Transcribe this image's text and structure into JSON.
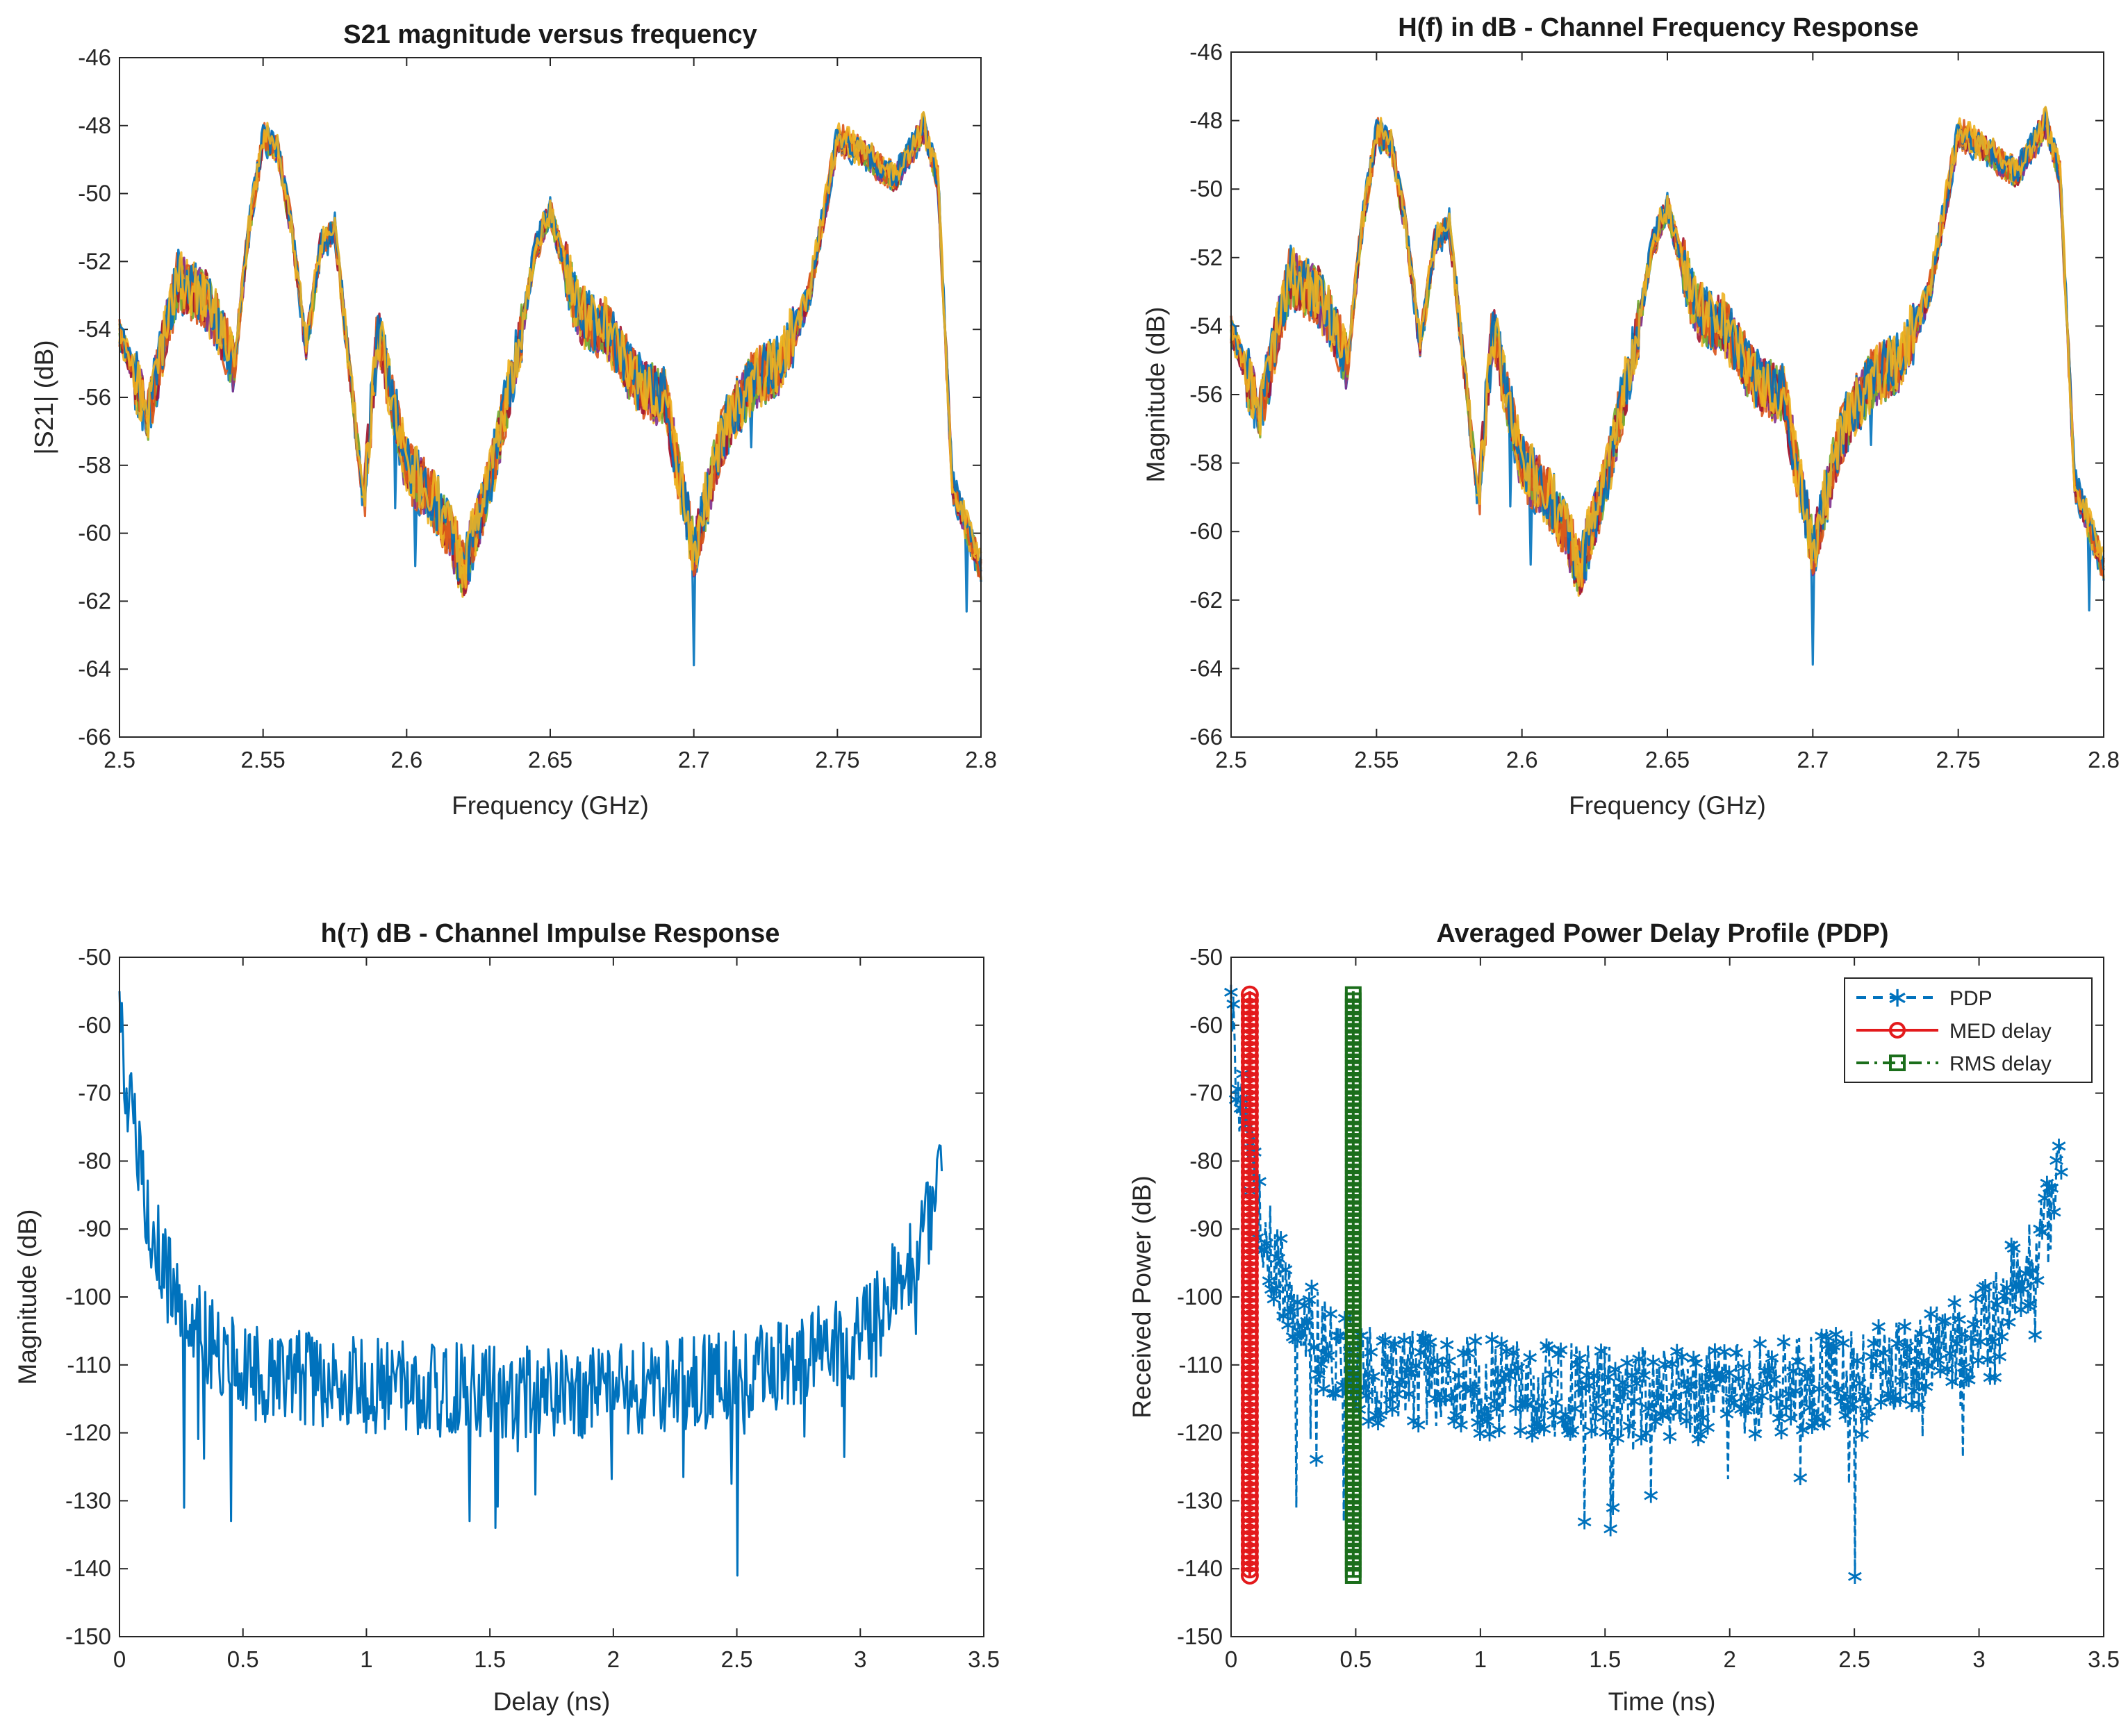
{
  "figure": "2x2 grid of channel measurement plots",
  "chart_data": [
    {
      "id": "s21",
      "type": "line",
      "title": "S21 magnitude versus frequency",
      "xlabel": "Frequency (GHz)",
      "ylabel": "|S21| (dB)",
      "xlim": [
        2.5,
        2.8
      ],
      "ylim": [
        -66,
        -46
      ],
      "xticks": [
        2.5,
        2.55,
        2.6,
        2.65,
        2.7,
        2.75,
        2.8
      ],
      "xtick_labels": [
        "2.5",
        "2.55",
        "2.6",
        "2.65",
        "2.7",
        "2.75",
        "2.8"
      ],
      "yticks": [
        -46,
        -48,
        -50,
        -52,
        -54,
        -56,
        -58,
        -60,
        -62,
        -64,
        -66
      ],
      "ytick_labels": [
        "-46",
        "-48",
        "-50",
        "-52",
        "-54",
        "-56",
        "-58",
        "-60",
        "-62",
        "-64",
        "-66"
      ],
      "x": [
        2.5,
        2.51,
        2.52,
        2.53,
        2.54,
        2.545,
        2.55,
        2.555,
        2.56,
        2.565,
        2.57,
        2.575,
        2.58,
        2.585,
        2.59,
        2.6,
        2.61,
        2.62,
        2.63,
        2.64,
        2.645,
        2.65,
        2.66,
        2.67,
        2.68,
        2.69,
        2.7,
        2.71,
        2.72,
        2.73,
        2.74,
        2.75,
        2.76,
        2.77,
        2.78,
        2.785,
        2.79,
        2.8
      ],
      "base": [
        -54,
        -56.5,
        -52.5,
        -53,
        -55,
        -51,
        -48.3,
        -48.6,
        -51,
        -54.5,
        -51.5,
        -51,
        -55,
        -59,
        -54,
        -58,
        -59,
        -61,
        -58,
        -54,
        -51.5,
        -50.5,
        -53.5,
        -54,
        -55.5,
        -56,
        -60.5,
        -57,
        -55.5,
        -55,
        -53,
        -48.3,
        -48.8,
        -49.5,
        -48,
        -49.5,
        -58.5,
        -61
      ],
      "series_colors": [
        "#0072BD",
        "#D95319",
        "#EDB120",
        "#7E2F8E",
        "#77AC30",
        "#A2142F",
        "#EDB120",
        "#D95319",
        "#0072BD",
        "#EDB120"
      ]
    },
    {
      "id": "hf",
      "type": "line",
      "title": "H(f) in dB - Channel Frequency Response",
      "xlabel": "Frequency (GHz)",
      "ylabel": "Magnitude (dB)",
      "xlim": [
        2.5,
        2.8
      ],
      "ylim": [
        -66,
        -46
      ],
      "xticks": [
        2.5,
        2.55,
        2.6,
        2.65,
        2.7,
        2.75,
        2.8
      ],
      "xtick_labels": [
        "2.5",
        "2.55",
        "2.6",
        "2.65",
        "2.7",
        "2.75",
        "2.8"
      ],
      "yticks": [
        -46,
        -48,
        -50,
        -52,
        -54,
        -56,
        -58,
        -60,
        -62,
        -64,
        -66
      ],
      "ytick_labels": [
        "-46",
        "-48",
        "-50",
        "-52",
        "-54",
        "-56",
        "-58",
        "-60",
        "-62",
        "-64",
        "-66"
      ],
      "x": [
        2.5,
        2.51,
        2.52,
        2.53,
        2.54,
        2.545,
        2.55,
        2.555,
        2.56,
        2.565,
        2.57,
        2.575,
        2.58,
        2.585,
        2.59,
        2.6,
        2.61,
        2.62,
        2.63,
        2.64,
        2.645,
        2.65,
        2.66,
        2.67,
        2.68,
        2.69,
        2.7,
        2.71,
        2.72,
        2.73,
        2.74,
        2.75,
        2.76,
        2.77,
        2.78,
        2.785,
        2.79,
        2.8
      ],
      "base": [
        -54,
        -56.5,
        -52.5,
        -53,
        -55,
        -51,
        -48.3,
        -48.6,
        -51,
        -54.5,
        -51.5,
        -51,
        -55,
        -59,
        -54,
        -58,
        -59,
        -61,
        -58,
        -54,
        -51.5,
        -50.5,
        -53.5,
        -54,
        -55.5,
        -56,
        -60.5,
        -57,
        -55.5,
        -55,
        -53,
        -48.3,
        -48.8,
        -49.5,
        -48,
        -49.5,
        -58.5,
        -61
      ],
      "series_colors": [
        "#0072BD",
        "#D95319",
        "#EDB120",
        "#7E2F8E",
        "#77AC30",
        "#A2142F",
        "#EDB120",
        "#D95319",
        "#0072BD",
        "#EDB120"
      ]
    },
    {
      "id": "cir",
      "type": "line",
      "title_prefix": "h(",
      "title_symbol": "τ",
      "title_suffix": ") dB - Channel Impulse Response",
      "xlabel": "Delay (ns)",
      "ylabel": "Magnitude (dB)",
      "xlim": [
        0,
        3.5
      ],
      "ylim": [
        -150,
        -50
      ],
      "xticks": [
        0,
        0.5,
        1,
        1.5,
        2,
        2.5,
        3,
        3.5
      ],
      "xtick_labels": [
        "0",
        "0.5",
        "1",
        "1.5",
        "2",
        "2.5",
        "3",
        "3.5"
      ],
      "yticks": [
        -50,
        -60,
        -70,
        -80,
        -90,
        -100,
        -110,
        -120,
        -130,
        -140,
        -150
      ],
      "ytick_labels": [
        "-50",
        "-60",
        "-70",
        "-80",
        "-90",
        "-100",
        "-110",
        "-120",
        "-130",
        "-140",
        "-150"
      ],
      "x_end": 3.33,
      "envelope_x": [
        0,
        0.03,
        0.1,
        0.2,
        0.35,
        0.5,
        1.0,
        1.5,
        2.0,
        2.5,
        2.8,
        3.0,
        3.1,
        3.2,
        3.28,
        3.33
      ],
      "envelope_y": [
        -55,
        -70,
        -85,
        -98,
        -106,
        -111,
        -113,
        -114,
        -114,
        -112,
        -109,
        -105,
        -101,
        -95,
        -88,
        -75
      ],
      "dips": [
        [
          0.26,
          -131
        ],
        [
          0.45,
          -133
        ],
        [
          1.42,
          -133
        ],
        [
          1.52,
          -134
        ],
        [
          2.5,
          -141
        ]
      ],
      "color": "#0072BD"
    },
    {
      "id": "pdp",
      "type": "line",
      "title": "Averaged Power Delay Profile (PDP)",
      "xlabel": "Time (ns)",
      "ylabel": "Received Power (dB)",
      "xlim": [
        0,
        3.5
      ],
      "ylim": [
        -150,
        -50
      ],
      "xticks": [
        0,
        0.5,
        1,
        1.5,
        2,
        2.5,
        3,
        3.5
      ],
      "xtick_labels": [
        "0",
        "0.5",
        "1",
        "1.5",
        "2",
        "2.5",
        "3",
        "3.5"
      ],
      "yticks": [
        -50,
        -60,
        -70,
        -80,
        -90,
        -100,
        -110,
        -120,
        -130,
        -140,
        -150
      ],
      "ytick_labels": [
        "-50",
        "-60",
        "-70",
        "-80",
        "-90",
        "-100",
        "-110",
        "-120",
        "-130",
        "-140",
        "-150"
      ],
      "med_delay": 0.075,
      "rms_delay": 0.49,
      "vline_range": [
        -141,
        -55
      ],
      "legend": [
        {
          "label": "PDP",
          "color": "#0072BD",
          "style": "dashed",
          "marker": "*"
        },
        {
          "label": "MED delay",
          "color": "#E31A1C",
          "style": "solid",
          "marker": "o"
        },
        {
          "label": "RMS delay",
          "color": "#1B6E1B",
          "style": "dashdot",
          "marker": "s"
        }
      ],
      "legend_location": "top-right",
      "x_end": 3.33,
      "envelope_x": [
        0,
        0.03,
        0.1,
        0.2,
        0.35,
        0.5,
        1.0,
        1.5,
        2.0,
        2.5,
        2.8,
        3.0,
        3.1,
        3.2,
        3.28,
        3.33
      ],
      "envelope_y": [
        -55,
        -70,
        -85,
        -98,
        -106,
        -111,
        -113,
        -114,
        -114,
        -112,
        -109,
        -105,
        -101,
        -95,
        -88,
        -75
      ],
      "dips": [
        [
          0.26,
          -131
        ],
        [
          0.45,
          -133
        ],
        [
          1.42,
          -133
        ],
        [
          1.52,
          -134
        ],
        [
          2.5,
          -141
        ]
      ]
    }
  ]
}
